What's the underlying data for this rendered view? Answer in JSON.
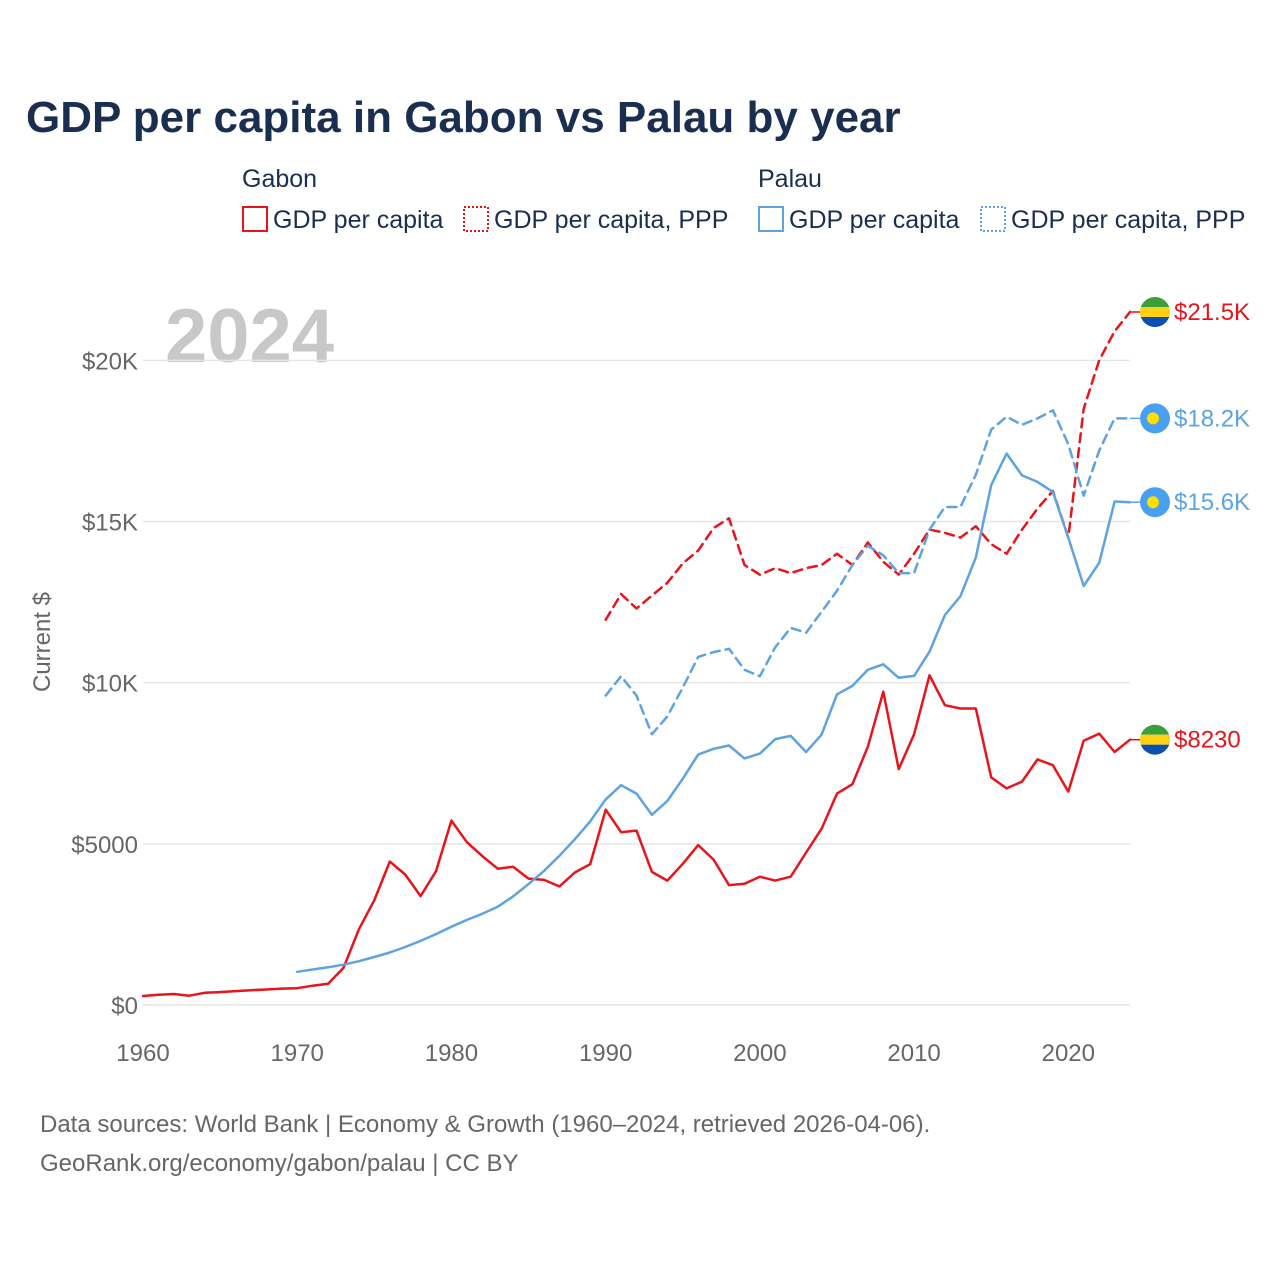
{
  "chart_data": {
    "type": "line",
    "title": "GDP per capita in Gabon vs Palau by year",
    "ylabel": "Current $",
    "xlabel": "",
    "xlim": [
      1960,
      2024
    ],
    "ylim": [
      0,
      21500
    ],
    "x_ticks": [
      1960,
      1970,
      1980,
      1990,
      2000,
      2010,
      2020
    ],
    "x_tick_labels": [
      "1960",
      "1970",
      "1980",
      "1990",
      "2000",
      "2010",
      "2020"
    ],
    "y_ticks": [
      0,
      5000,
      10000,
      15000,
      20000
    ],
    "y_tick_labels": [
      "$0",
      "$5000",
      "$10K",
      "$15K",
      "$20K"
    ],
    "grid": true,
    "year_label": "2024",
    "legend": {
      "placement": "top",
      "groups": [
        {
          "country": "Gabon",
          "items": [
            "GDP per capita",
            "GDP per capita, PPP"
          ]
        },
        {
          "country": "Palau",
          "items": [
            "GDP per capita",
            "GDP per capita, PPP"
          ]
        }
      ]
    },
    "series": [
      {
        "name": "Gabon GDP per capita",
        "color": "#e8141b",
        "style": "solid",
        "end_label": "$8230",
        "flag": "gabon",
        "x": [
          1960,
          1961,
          1962,
          1963,
          1964,
          1965,
          1966,
          1967,
          1968,
          1969,
          1970,
          1971,
          1972,
          1973,
          1974,
          1975,
          1976,
          1977,
          1978,
          1979,
          1980,
          1981,
          1982,
          1983,
          1984,
          1985,
          1986,
          1987,
          1988,
          1989,
          1990,
          1991,
          1992,
          1993,
          1994,
          1995,
          1996,
          1997,
          1998,
          1999,
          2000,
          2001,
          2002,
          2003,
          2004,
          2005,
          2006,
          2007,
          2008,
          2009,
          2010,
          2011,
          2012,
          2013,
          2014,
          2015,
          2016,
          2017,
          2018,
          2019,
          2020,
          2021,
          2022,
          2023,
          2024
        ],
        "values": [
          280,
          320,
          340,
          290,
          380,
          400,
          430,
          460,
          480,
          510,
          520,
          600,
          660,
          1150,
          2350,
          3250,
          4450,
          4050,
          3380,
          4150,
          5720,
          5050,
          4620,
          4230,
          4290,
          3920,
          3880,
          3680,
          4110,
          4370,
          6060,
          5360,
          5410,
          4130,
          3860,
          4380,
          4960,
          4510,
          3720,
          3760,
          3980,
          3860,
          3980,
          4730,
          5470,
          6560,
          6850,
          8010,
          9720,
          7320,
          8400,
          10230,
          9300,
          9200,
          9200,
          7060,
          6720,
          6930,
          7620,
          7440,
          6620,
          8200,
          8420,
          7850,
          8230
        ]
      },
      {
        "name": "Gabon GDP per capita, PPP",
        "color": "#e8141b",
        "style": "dashed",
        "end_label": "$21.5K",
        "flag": "gabon",
        "x": [
          1990,
          1991,
          1992,
          1993,
          1994,
          1995,
          1996,
          1997,
          1998,
          1999,
          2000,
          2001,
          2002,
          2003,
          2004,
          2005,
          2006,
          2007,
          2008,
          2009,
          2010,
          2011,
          2012,
          2013,
          2014,
          2015,
          2016,
          2017,
          2018,
          2019,
          2020,
          2021,
          2022,
          2023,
          2024
        ],
        "values": [
          11950,
          12750,
          12300,
          12700,
          13100,
          13700,
          14100,
          14800,
          15100,
          13650,
          13350,
          13550,
          13400,
          13550,
          13650,
          14000,
          13650,
          14350,
          13750,
          13350,
          14000,
          14750,
          14650,
          14500,
          14850,
          14300,
          14000,
          14750,
          15400,
          15950,
          14500,
          18500,
          20000,
          20900,
          21500
        ]
      },
      {
        "name": "Palau GDP per capita",
        "color": "#5ea3e0",
        "style": "solid",
        "end_label": "$15.6K",
        "flag": "palau",
        "x": [
          1970,
          1971,
          1972,
          1973,
          1974,
          1975,
          1976,
          1977,
          1978,
          1979,
          1980,
          1981,
          1982,
          1983,
          1984,
          1985,
          1986,
          1987,
          1988,
          1989,
          1990,
          1991,
          1992,
          1993,
          1994,
          1995,
          1996,
          1997,
          1998,
          1999,
          2000,
          2001,
          2002,
          2003,
          2004,
          2005,
          2006,
          2007,
          2008,
          2009,
          2010,
          2011,
          2012,
          2013,
          2014,
          2015,
          2016,
          2017,
          2018,
          2019,
          2020,
          2021,
          2022,
          2023,
          2024
        ],
        "values": [
          1030,
          1100,
          1170,
          1250,
          1360,
          1490,
          1630,
          1800,
          1990,
          2200,
          2430,
          2640,
          2830,
          3050,
          3370,
          3750,
          4160,
          4630,
          5140,
          5700,
          6380,
          6820,
          6560,
          5900,
          6330,
          7020,
          7770,
          7950,
          8050,
          7650,
          7800,
          8250,
          8350,
          7850,
          8390,
          9640,
          9900,
          10400,
          10570,
          10150,
          10210,
          10960,
          12100,
          12680,
          13880,
          16130,
          17110,
          16430,
          16230,
          15920,
          14500,
          13000,
          13720,
          15620,
          15600
        ]
      },
      {
        "name": "Palau GDP per capita, PPP",
        "color": "#5ea3e0",
        "style": "dashed",
        "end_label": "$18.2K",
        "flag": "palau",
        "x": [
          1990,
          1991,
          1992,
          1993,
          1994,
          1995,
          1996,
          1997,
          1998,
          1999,
          2000,
          2001,
          2002,
          2003,
          2004,
          2005,
          2006,
          2007,
          2008,
          2009,
          2010,
          2011,
          2012,
          2013,
          2014,
          2015,
          2016,
          2017,
          2018,
          2019,
          2020,
          2021,
          2022,
          2023,
          2024
        ],
        "values": [
          9600,
          10200,
          9600,
          8400,
          8950,
          9850,
          10800,
          10950,
          11050,
          10400,
          10200,
          11100,
          11700,
          11550,
          12200,
          12850,
          13650,
          14250,
          13950,
          13400,
          13400,
          14750,
          15450,
          15450,
          16450,
          17850,
          18250,
          18000,
          18200,
          18450,
          17400,
          15800,
          17200,
          18200,
          18200
        ]
      }
    ]
  },
  "legend_text": {
    "gabon": "Gabon",
    "palau": "Palau",
    "gdp": "GDP per capita",
    "ppp": "GDP per capita, PPP"
  },
  "footer": {
    "line1": "Data sources: World Bank | Economy & Growth (1960–2024, retrieved 2026-04-06).",
    "line2": "GeoRank.org/economy/gabon/palau | CC BY"
  },
  "colors": {
    "gabon": "#e8141b",
    "palau": "#5ea3e0",
    "title": "#1a2e4f",
    "axis_text": "#666666",
    "gabon_flag_green": "#3a9f3a",
    "gabon_flag_yellow": "#fcd116",
    "gabon_flag_blue": "#0b4fb0",
    "palau_flag_blue": "#4aa0f0",
    "palau_flag_moon": "#ffde00"
  }
}
